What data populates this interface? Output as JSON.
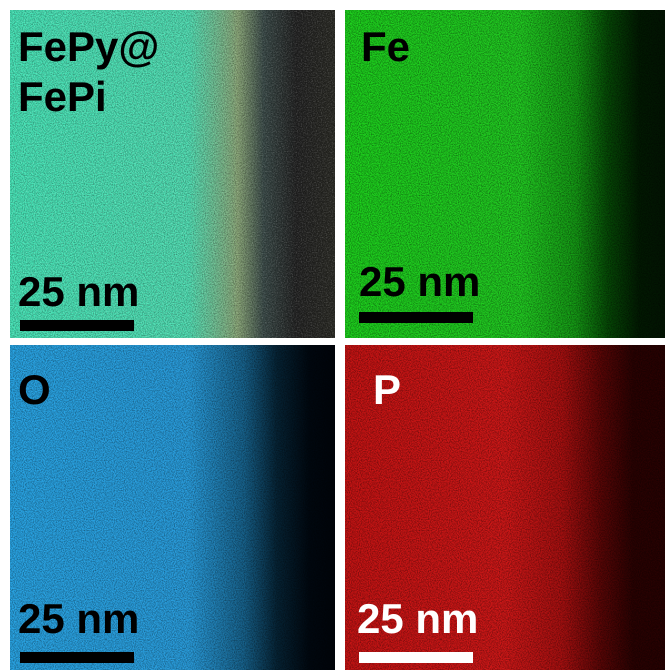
{
  "panels": [
    {
      "label": [
        "FePy@",
        "FePi"
      ],
      "scale_bar": "25 nm"
    },
    {
      "label": [
        "Fe"
      ],
      "scale_bar": "25 nm"
    },
    {
      "label": [
        "O"
      ],
      "scale_bar": "25 nm"
    },
    {
      "label": [
        "P"
      ],
      "scale_bar": "25 nm"
    }
  ]
}
